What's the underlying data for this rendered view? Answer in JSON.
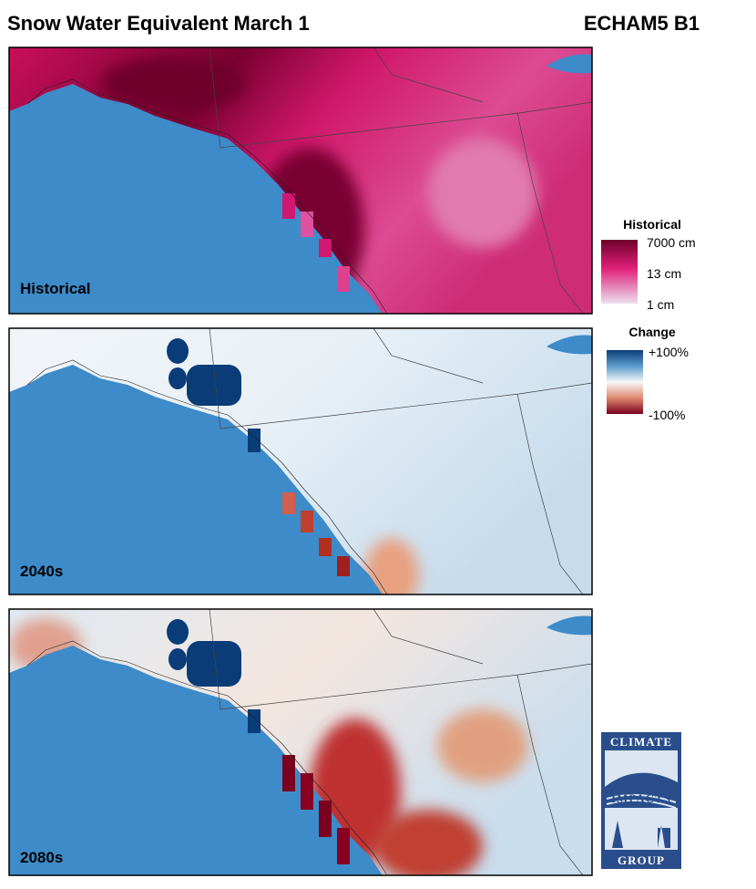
{
  "header": {
    "title": "Snow Water Equivalent March 1",
    "model": "ECHAM5 B1"
  },
  "panels": [
    {
      "label": "Historical"
    },
    {
      "label": "2040s"
    },
    {
      "label": "2080s"
    }
  ],
  "legends": {
    "historical": {
      "title": "Historical",
      "labels": [
        "7000 cm",
        "13 cm",
        "1 cm"
      ]
    },
    "change": {
      "title": "Change",
      "labels": [
        "+100%",
        "-100%"
      ]
    }
  },
  "logo": {
    "lines": [
      "CLIMATE",
      "IMPACTS",
      "GROUP"
    ]
  }
}
